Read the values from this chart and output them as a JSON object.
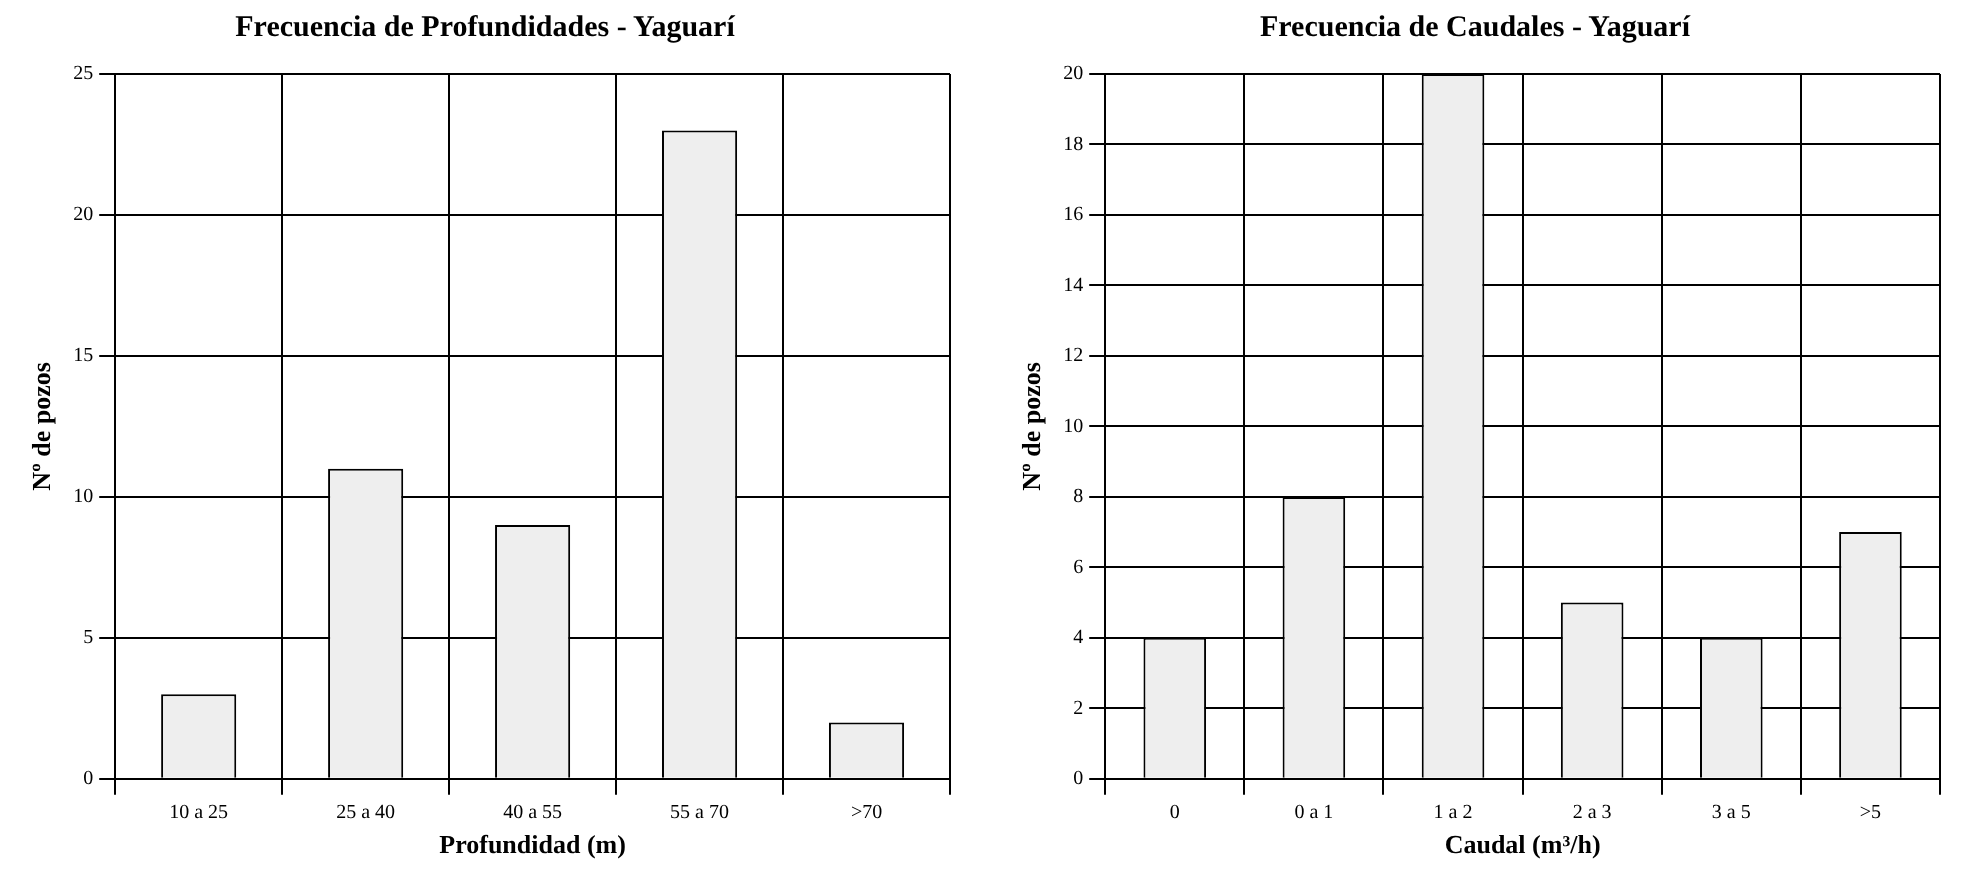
{
  "chart_data": [
    {
      "type": "bar",
      "title": "Frecuencia de Profundidades - Yaguarí",
      "xlabel": "Profundidad (m)",
      "ylabel": "Nº de pozos",
      "categories": [
        "10 a 25",
        "25 a 40",
        "40 a 55",
        "55 a 70",
        ">70"
      ],
      "values": [
        3,
        11,
        9,
        23,
        2
      ],
      "color": "#eeeeee",
      "ylim": [
        0,
        25
      ],
      "yticks": [
        0,
        5,
        10,
        15,
        20,
        25
      ],
      "grid": true,
      "legend": false
    },
    {
      "type": "bar",
      "title": "Frecuencia de Caudales - Yaguarí",
      "xlabel": "Caudal (m³/h)",
      "ylabel": "Nº de pozos",
      "categories": [
        "0",
        "0 a 1",
        "1 a 2",
        "2 a 3",
        "3 a 5",
        ">5"
      ],
      "values": [
        4,
        8,
        20,
        5,
        4,
        7
      ],
      "color": "#eeeeee",
      "ylim": [
        0,
        20
      ],
      "yticks": [
        0,
        2,
        4,
        6,
        8,
        10,
        12,
        14,
        16,
        18,
        20
      ],
      "grid": true,
      "legend": false
    }
  ]
}
